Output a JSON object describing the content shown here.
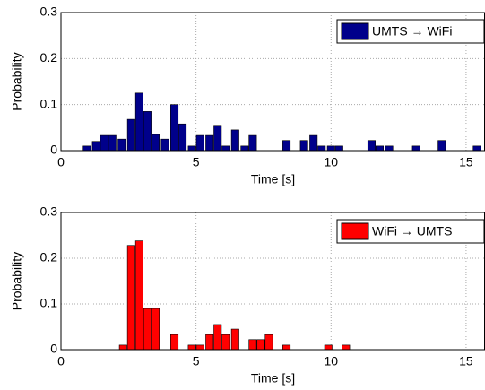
{
  "chart_data": [
    {
      "type": "bar",
      "xlabel": "Time [s]",
      "ylabel": "Probability",
      "xlim": [
        0,
        15.7
      ],
      "ylim": [
        0,
        0.3
      ],
      "xticks": [
        0,
        5,
        10,
        15
      ],
      "yticks": [
        0,
        0.1,
        0.2,
        0.3
      ],
      "grid": true,
      "legend": "upper right",
      "series": [
        {
          "name": "UMTS → WiFi",
          "color": "#00008b",
          "x": [
            0.96,
            1.3,
            1.6,
            1.9,
            2.25,
            2.6,
            2.9,
            3.2,
            3.5,
            3.85,
            4.2,
            4.5,
            4.85,
            5.15,
            5.5,
            5.8,
            6.1,
            6.45,
            6.8,
            7.1,
            8.35,
            9.0,
            9.35,
            9.65,
            10.0,
            10.3,
            11.5,
            11.8,
            12.15,
            13.15,
            14.1,
            15.4
          ],
          "values": [
            0.01,
            0.02,
            0.033,
            0.033,
            0.025,
            0.068,
            0.125,
            0.085,
            0.035,
            0.025,
            0.1,
            0.058,
            0.01,
            0.033,
            0.033,
            0.055,
            0.01,
            0.045,
            0.01,
            0.033,
            0.022,
            0.022,
            0.033,
            0.01,
            0.01,
            0.01,
            0.022,
            0.01,
            0.01,
            0.01,
            0.022,
            0.01
          ]
        }
      ]
    },
    {
      "type": "bar",
      "xlabel": "Time [s]",
      "ylabel": "Probability",
      "xlim": [
        0,
        15.7
      ],
      "ylim": [
        0,
        0.3
      ],
      "xticks": [
        0,
        5,
        10,
        15
      ],
      "yticks": [
        0,
        0.1,
        0.2,
        0.3
      ],
      "grid": true,
      "legend": "upper right",
      "series": [
        {
          "name": "WiFi → UMTS",
          "color": "#ff0000",
          "x": [
            2.3,
            2.6,
            2.9,
            3.2,
            3.5,
            4.2,
            4.85,
            5.15,
            5.5,
            5.8,
            6.1,
            6.45,
            7.1,
            7.4,
            7.7,
            8.35,
            9.9,
            10.55
          ],
          "values": [
            0.01,
            0.228,
            0.238,
            0.09,
            0.09,
            0.033,
            0.01,
            0.01,
            0.033,
            0.055,
            0.033,
            0.045,
            0.022,
            0.022,
            0.033,
            0.01,
            0.01,
            0.01
          ]
        }
      ]
    }
  ]
}
